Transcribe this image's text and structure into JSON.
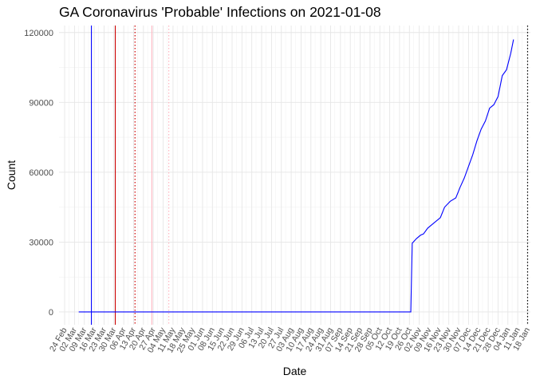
{
  "chart_data": {
    "type": "line",
    "title": "GA Coronavirus 'Probable' Infections on 2021-01-08",
    "xlabel": "Date",
    "ylabel": "Count",
    "ylim": [
      -5500,
      123000
    ],
    "xlim": [
      "2020-02-20",
      "2021-01-20"
    ],
    "grid": true,
    "y_ticks": [
      0,
      30000,
      60000,
      90000,
      120000
    ],
    "y_tick_labels": [
      "0",
      "30000",
      "60000",
      "90000",
      "120000"
    ],
    "x_ticks": [
      "2020-02-24",
      "2020-03-02",
      "2020-03-09",
      "2020-03-16",
      "2020-03-23",
      "2020-03-30",
      "2020-04-06",
      "2020-04-13",
      "2020-04-20",
      "2020-04-27",
      "2020-05-04",
      "2020-05-11",
      "2020-05-18",
      "2020-05-25",
      "2020-06-01",
      "2020-06-08",
      "2020-06-15",
      "2020-06-22",
      "2020-06-29",
      "2020-07-06",
      "2020-07-13",
      "2020-07-20",
      "2020-07-27",
      "2020-08-03",
      "2020-08-10",
      "2020-08-17",
      "2020-08-24",
      "2020-08-31",
      "2020-09-07",
      "2020-09-14",
      "2020-09-21",
      "2020-09-28",
      "2020-10-05",
      "2020-10-12",
      "2020-10-19",
      "2020-10-26",
      "2020-11-02",
      "2020-11-09",
      "2020-11-16",
      "2020-11-23",
      "2020-11-30",
      "2020-12-07",
      "2020-12-14",
      "2020-12-21",
      "2020-12-28",
      "2021-01-04",
      "2021-01-11",
      "2021-01-18"
    ],
    "x_tick_labels": [
      "24 Feb",
      "02 Mar",
      "09 Mar",
      "16 Mar",
      "23 Mar",
      "30 Mar",
      "06 Apr",
      "13 Apr",
      "20 Apr",
      "27 Apr",
      "04 May",
      "11 May",
      "18 May",
      "25 May",
      "01 Jun",
      "08 Jun",
      "15 Jun",
      "22 Jun",
      "29 Jun",
      "06 Jul",
      "13 Jul",
      "20 Jul",
      "27 Jul",
      "03 Aug",
      "10 Aug",
      "17 Aug",
      "24 Aug",
      "31 Aug",
      "07 Sep",
      "14 Sep",
      "21 Sep",
      "28 Sep",
      "05 Oct",
      "12 Oct",
      "19 Oct",
      "26 Oct",
      "02 Nov",
      "09 Nov",
      "16 Nov",
      "23 Nov",
      "30 Nov",
      "07 Dec",
      "14 Dec",
      "21 Dec",
      "28 Dec",
      "04 Jan",
      "11 Jan",
      "18 Jan"
    ],
    "series": [
      {
        "color": "#0000ff",
        "x": [
          "2020-03-05",
          "2020-10-27",
          "2020-10-28",
          "2020-10-31",
          "2020-11-03",
          "2020-11-05",
          "2020-11-08",
          "2020-11-12",
          "2020-11-17",
          "2020-11-20",
          "2020-11-24",
          "2020-11-28",
          "2020-12-01",
          "2020-12-04",
          "2020-12-07",
          "2020-12-10",
          "2020-12-13",
          "2020-12-16",
          "2020-12-19",
          "2020-12-22",
          "2020-12-25",
          "2020-12-28",
          "2020-12-31",
          "2021-01-03",
          "2021-01-06",
          "2021-01-08"
        ],
        "y": [
          0,
          0,
          29500,
          31500,
          33000,
          33500,
          36000,
          38000,
          40500,
          45000,
          47500,
          49000,
          53500,
          57500,
          62500,
          67500,
          73500,
          78500,
          82000,
          87500,
          89000,
          92500,
          101500,
          104000,
          111000,
          117000
        ]
      }
    ],
    "reference_lines": [
      {
        "x": "2020-03-14",
        "color": "#0000ff",
        "style": "solid"
      },
      {
        "x": "2020-03-31",
        "color": "#cc0000",
        "style": "solid"
      },
      {
        "x": "2020-04-14",
        "color": "#cc0000",
        "style": "dotted"
      },
      {
        "x": "2020-04-26",
        "color": "#ffb6c1",
        "style": "solid"
      },
      {
        "x": "2020-05-08",
        "color": "#ffb6c1",
        "style": "dotted"
      },
      {
        "x": "2021-01-18",
        "color": "#000000",
        "style": "dotted"
      }
    ]
  }
}
